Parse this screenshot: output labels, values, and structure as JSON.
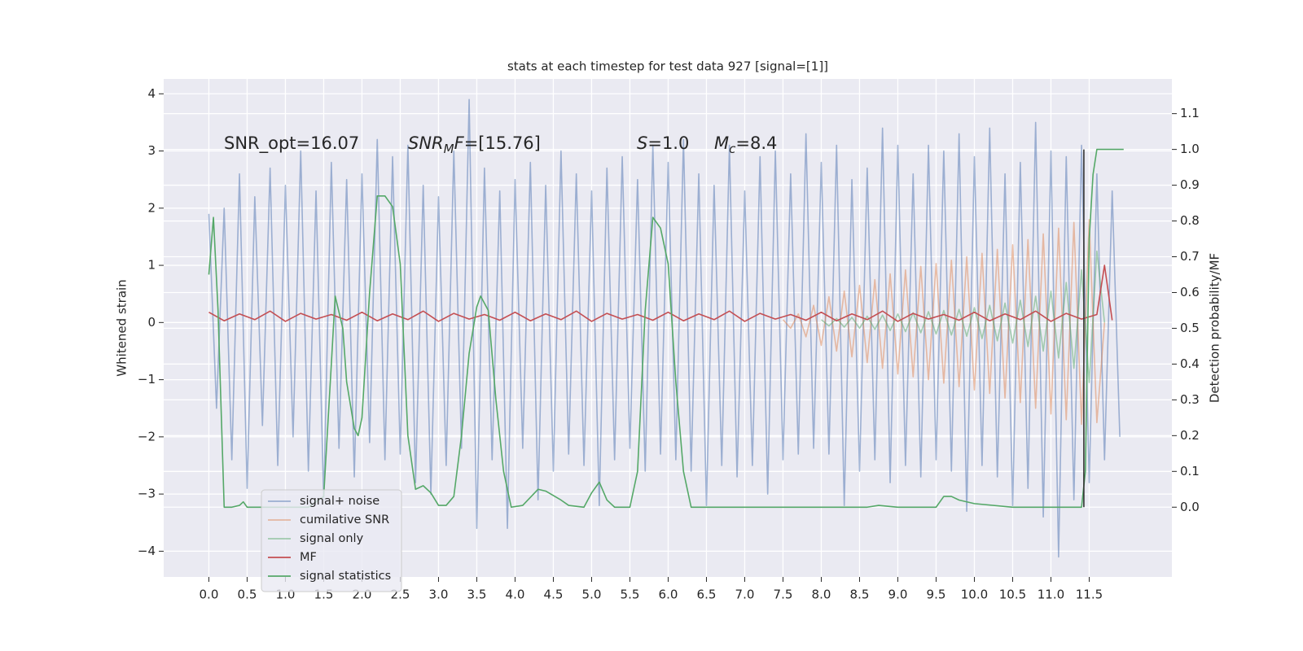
{
  "chart_data": {
    "type": "line",
    "title": "stats at each timestep for test data 927 [signal=[1]]",
    "ylabel": "Whitened strain",
    "y2label": "Detection probability/MF",
    "background": "#eaeaf2",
    "grid": true,
    "legend_loc": "lower left",
    "xlim": [
      -0.59,
      12.58
    ],
    "ylim": [
      -4.45,
      4.26
    ],
    "y2lim": [
      -0.195,
      1.197
    ],
    "xticks": [
      {
        "value": 0,
        "label": "0.0"
      },
      {
        "value": 0.5,
        "label": "0.5"
      },
      {
        "value": 1,
        "label": "1.0"
      },
      {
        "value": 1.5,
        "label": "1.5"
      },
      {
        "value": 2,
        "label": "2.0"
      },
      {
        "value": 2.5,
        "label": "2.5"
      },
      {
        "value": 3,
        "label": "3.0"
      },
      {
        "value": 3.5,
        "label": "3.5"
      },
      {
        "value": 4,
        "label": "4.0"
      },
      {
        "value": 4.5,
        "label": "4.5"
      },
      {
        "value": 5,
        "label": "5.0"
      },
      {
        "value": 5.5,
        "label": "5.5"
      },
      {
        "value": 6,
        "label": "6.0"
      },
      {
        "value": 6.5,
        "label": "6.5"
      },
      {
        "value": 7,
        "label": "7.0"
      },
      {
        "value": 7.5,
        "label": "7.5"
      },
      {
        "value": 8,
        "label": "8.0"
      },
      {
        "value": 8.5,
        "label": "8.5"
      },
      {
        "value": 9,
        "label": "9.0"
      },
      {
        "value": 9.5,
        "label": "9.5"
      },
      {
        "value": 10,
        "label": "10.0"
      },
      {
        "value": 10.5,
        "label": "10.5"
      },
      {
        "value": 11,
        "label": "11.0"
      },
      {
        "value": 11.5,
        "label": "11.5"
      }
    ],
    "yticks": [
      {
        "value": -4,
        "label": "−4"
      },
      {
        "value": -3,
        "label": "−3"
      },
      {
        "value": -2,
        "label": "−2"
      },
      {
        "value": -1,
        "label": "−1"
      },
      0,
      1,
      2,
      3,
      4
    ],
    "y2ticks": [
      {
        "value": 0,
        "label": "0.0"
      },
      {
        "value": 0.1,
        "label": "0.1"
      },
      {
        "value": 0.2,
        "label": "0.2"
      },
      {
        "value": 0.3,
        "label": "0.3"
      },
      {
        "value": 0.4,
        "label": "0.4"
      },
      {
        "value": 0.5,
        "label": "0.5"
      },
      {
        "value": 0.6,
        "label": "0.6"
      },
      {
        "value": 0.7,
        "label": "0.7"
      },
      {
        "value": 0.8,
        "label": "0.8"
      },
      {
        "value": 0.9,
        "label": "0.9"
      },
      {
        "value": 1,
        "label": "1.0"
      },
      {
        "value": 1.1,
        "label": "1.1"
      }
    ],
    "annotations": [
      {
        "parts": [
          {
            "text": "SNR_opt=16.07",
            "style": "normal"
          }
        ]
      },
      {
        "parts": [
          {
            "text": "SNR",
            "style": "italic"
          },
          {
            "text": "M",
            "style": "sub"
          },
          {
            "text": "F",
            "style": "italic"
          },
          {
            "text": "=[15.76]",
            "style": "normal"
          }
        ]
      },
      {
        "parts": [
          {
            "text": "S",
            "style": "italic"
          },
          {
            "text": "=1.0",
            "style": "normal"
          }
        ]
      },
      {
        "parts": [
          {
            "text": "M",
            "style": "italic"
          },
          {
            "text": "c",
            "style": "sub"
          },
          {
            "text": "=8.4",
            "style": "normal"
          }
        ]
      }
    ],
    "vline": {
      "x": 11.43,
      "ylim": [
        0,
        1.0
      ],
      "axis": "y2",
      "color": "#333333"
    },
    "series": [
      {
        "name": "signal+ noise",
        "color": "#4c72b0",
        "opacity": 0.5,
        "x": [
          0,
          0.1,
          0.2,
          0.3,
          0.4,
          0.5,
          0.6,
          0.7,
          0.8,
          0.9,
          1,
          1.1,
          1.2,
          1.3,
          1.4,
          1.5,
          1.6,
          1.7,
          1.8,
          1.9,
          2,
          2.1,
          2.2,
          2.3,
          2.4,
          2.5,
          2.6,
          2.7,
          2.8,
          2.9,
          3,
          3.1,
          3.2,
          3.3,
          3.4,
          3.5,
          3.6,
          3.7,
          3.8,
          3.9,
          4,
          4.1,
          4.2,
          4.3,
          4.4,
          4.5,
          4.6,
          4.7,
          4.8,
          4.9,
          5,
          5.1,
          5.2,
          5.3,
          5.4,
          5.5,
          5.6,
          5.7,
          5.8,
          5.9,
          6,
          6.1,
          6.2,
          6.3,
          6.4,
          6.5,
          6.6,
          6.7,
          6.8,
          6.9,
          7,
          7.1,
          7.2,
          7.3,
          7.4,
          7.5,
          7.6,
          7.7,
          7.8,
          7.9,
          8,
          8.1,
          8.2,
          8.3,
          8.4,
          8.5,
          8.6,
          8.7,
          8.8,
          8.9,
          9,
          9.1,
          9.2,
          9.3,
          9.4,
          9.5,
          9.6,
          9.7,
          9.8,
          9.9,
          10,
          10.1,
          10.2,
          10.3,
          10.4,
          10.5,
          10.6,
          10.7,
          10.8,
          10.9,
          11,
          11.1,
          11.2,
          11.3,
          11.4,
          11.5,
          11.6,
          11.7,
          11.8,
          11.9
        ],
        "values": [
          1.9,
          -1.5,
          2.0,
          -2.4,
          2.6,
          -2.9,
          2.2,
          -1.8,
          2.7,
          -2.5,
          2.4,
          -2.0,
          3.0,
          -2.6,
          2.3,
          -3.1,
          2.8,
          -2.2,
          2.5,
          -2.7,
          2.6,
          -2.1,
          3.2,
          -2.4,
          2.9,
          -2.3,
          3.1,
          -2.8,
          2.4,
          -3.0,
          2.2,
          -2.5,
          3.0,
          -2.2,
          3.9,
          -3.6,
          2.7,
          -2.4,
          2.3,
          -3.6,
          2.5,
          -2.2,
          2.8,
          -3.1,
          2.4,
          -2.6,
          3.0,
          -2.3,
          2.6,
          -2.5,
          2.3,
          -3.2,
          2.7,
          -2.4,
          2.9,
          -2.2,
          2.5,
          -2.6,
          3.1,
          -2.3,
          2.8,
          -2.4,
          3.2,
          -2.6,
          2.6,
          -3.2,
          2.4,
          -2.5,
          3.1,
          -2.7,
          2.3,
          -2.5,
          2.9,
          -3.0,
          3.0,
          -2.4,
          2.6,
          -2.3,
          3.3,
          -2.2,
          2.8,
          -2.3,
          3.1,
          -3.2,
          2.5,
          -2.6,
          2.7,
          -2.4,
          3.4,
          -2.8,
          3.1,
          -2.5,
          2.6,
          -2.7,
          3.1,
          -2.4,
          3.0,
          -2.6,
          3.3,
          -3.3,
          2.9,
          -2.5,
          3.4,
          -2.7,
          2.6,
          -3.2,
          2.8,
          -2.9,
          3.5,
          -3.4,
          3.0,
          -4.1,
          2.9,
          -3.1,
          3.1,
          -2.8,
          2.6,
          -2.4,
          2.3,
          -2.0
        ]
      },
      {
        "name": "cumilative SNR",
        "color": "#dd8452",
        "opacity": 0.5,
        "x": [
          7.5,
          7.6,
          7.7,
          7.8,
          7.9,
          8,
          8.1,
          8.2,
          8.3,
          8.4,
          8.5,
          8.6,
          8.7,
          8.8,
          8.9,
          9,
          9.1,
          9.2,
          9.3,
          9.4,
          9.5,
          9.6,
          9.7,
          9.8,
          9.9,
          10,
          10.1,
          10.2,
          10.3,
          10.4,
          10.5,
          10.6,
          10.7,
          10.8,
          10.9,
          11,
          11.1,
          11.2,
          11.3,
          11.4,
          11.5,
          11.6,
          11.7
        ],
        "values": [
          0.05,
          -0.1,
          0.15,
          -0.25,
          0.3,
          -0.4,
          0.45,
          -0.5,
          0.55,
          -0.6,
          0.65,
          -0.7,
          0.75,
          -0.8,
          0.85,
          -0.9,
          0.92,
          -0.95,
          0.98,
          -1.0,
          1.03,
          -1.06,
          1.09,
          -1.12,
          1.15,
          -1.18,
          1.21,
          -1.24,
          1.28,
          -1.32,
          1.36,
          -1.4,
          1.45,
          -1.5,
          1.55,
          -1.6,
          1.65,
          -1.7,
          1.75,
          -1.78,
          1.8,
          -1.75,
          0.0
        ]
      },
      {
        "name": "signal only",
        "color": "#55a868",
        "opacity": 0.5,
        "x": [
          8,
          8.1,
          8.2,
          8.3,
          8.4,
          8.5,
          8.6,
          8.7,
          8.8,
          8.9,
          9,
          9.1,
          9.2,
          9.3,
          9.4,
          9.5,
          9.6,
          9.7,
          9.8,
          9.9,
          10,
          10.1,
          10.2,
          10.3,
          10.4,
          10.5,
          10.6,
          10.7,
          10.8,
          10.9,
          11,
          11.1,
          11.2,
          11.3,
          11.4,
          11.5,
          11.6,
          11.7
        ],
        "values": [
          0.05,
          -0.06,
          0.07,
          -0.08,
          0.09,
          -0.1,
          0.11,
          -0.12,
          0.13,
          -0.14,
          0.15,
          -0.16,
          0.17,
          -0.18,
          0.19,
          -0.2,
          0.21,
          -0.22,
          0.23,
          -0.24,
          0.26,
          -0.28,
          0.3,
          -0.32,
          0.34,
          -0.36,
          0.39,
          -0.42,
          0.46,
          -0.5,
          0.55,
          -0.62,
          0.7,
          -0.8,
          0.92,
          -1.05,
          1.25,
          0.0
        ]
      },
      {
        "name": "MF",
        "color": "#c44e52",
        "opacity": 1,
        "x": [
          0,
          0.2,
          0.4,
          0.6,
          0.8,
          1,
          1.2,
          1.4,
          1.6,
          1.8,
          2,
          2.2,
          2.4,
          2.6,
          2.8,
          3,
          3.2,
          3.4,
          3.6,
          3.8,
          4,
          4.2,
          4.4,
          4.6,
          4.8,
          5,
          5.2,
          5.4,
          5.6,
          5.8,
          6,
          6.2,
          6.4,
          6.6,
          6.8,
          7,
          7.2,
          7.4,
          7.6,
          7.8,
          8,
          8.2,
          8.4,
          8.6,
          8.8,
          9,
          9.2,
          9.4,
          9.6,
          9.8,
          10,
          10.2,
          10.4,
          10.6,
          10.8,
          11,
          11.2,
          11.4,
          11.6,
          11.7,
          11.8
        ],
        "values": [
          0.18,
          0.03,
          0.15,
          0.05,
          0.2,
          0.02,
          0.16,
          0.06,
          0.14,
          0.04,
          0.18,
          0.03,
          0.15,
          0.05,
          0.2,
          0.02,
          0.16,
          0.06,
          0.14,
          0.04,
          0.18,
          0.03,
          0.15,
          0.05,
          0.2,
          0.02,
          0.16,
          0.06,
          0.14,
          0.04,
          0.18,
          0.03,
          0.15,
          0.05,
          0.2,
          0.02,
          0.16,
          0.06,
          0.14,
          0.04,
          0.18,
          0.03,
          0.15,
          0.05,
          0.2,
          0.02,
          0.16,
          0.06,
          0.14,
          0.04,
          0.18,
          0.03,
          0.15,
          0.05,
          0.2,
          0.02,
          0.16,
          0.06,
          0.14,
          1.0,
          0.04
        ]
      },
      {
        "name": "signal statistics",
        "color": "#55a868",
        "opacity": 1,
        "axis": "y2",
        "x": [
          0,
          0.06,
          0.12,
          0.2,
          0.3,
          0.4,
          0.45,
          0.5,
          0.8,
          1.0,
          1.3,
          1.5,
          1.6,
          1.65,
          1.75,
          1.8,
          1.9,
          1.95,
          2.0,
          2.1,
          2.2,
          2.3,
          2.4,
          2.5,
          2.6,
          2.7,
          2.8,
          2.9,
          3.0,
          3.1,
          3.2,
          3.3,
          3.4,
          3.5,
          3.55,
          3.65,
          3.75,
          3.85,
          3.95,
          4.1,
          4.3,
          4.4,
          4.6,
          4.7,
          4.9,
          5.0,
          5.1,
          5.2,
          5.3,
          5.5,
          5.6,
          5.7,
          5.8,
          5.9,
          6.0,
          6.1,
          6.2,
          6.3,
          6.5,
          7.0,
          8.0,
          8.6,
          8.75,
          9.0,
          9.5,
          9.6,
          9.7,
          9.8,
          10.0,
          10.5,
          11.0,
          11.4,
          11.45,
          11.5,
          11.55,
          11.6,
          11.95
        ],
        "values": [
          0.65,
          0.81,
          0.55,
          0.0,
          0.0,
          0.005,
          0.015,
          0.0,
          0.0,
          0.0,
          0.0,
          0.03,
          0.4,
          0.59,
          0.5,
          0.35,
          0.22,
          0.2,
          0.25,
          0.6,
          0.87,
          0.87,
          0.84,
          0.68,
          0.2,
          0.05,
          0.06,
          0.04,
          0.005,
          0.005,
          0.03,
          0.2,
          0.43,
          0.56,
          0.59,
          0.55,
          0.3,
          0.1,
          0.0,
          0.005,
          0.05,
          0.045,
          0.02,
          0.005,
          0.0,
          0.04,
          0.07,
          0.02,
          0.0,
          0.0,
          0.1,
          0.55,
          0.81,
          0.78,
          0.68,
          0.35,
          0.1,
          0.0,
          0.0,
          0.0,
          0.0,
          0.0,
          0.005,
          0.0,
          0.0,
          0.03,
          0.03,
          0.02,
          0.01,
          0.0,
          0.0,
          0.0,
          0.1,
          0.75,
          0.93,
          1.0,
          1.0
        ]
      }
    ]
  }
}
